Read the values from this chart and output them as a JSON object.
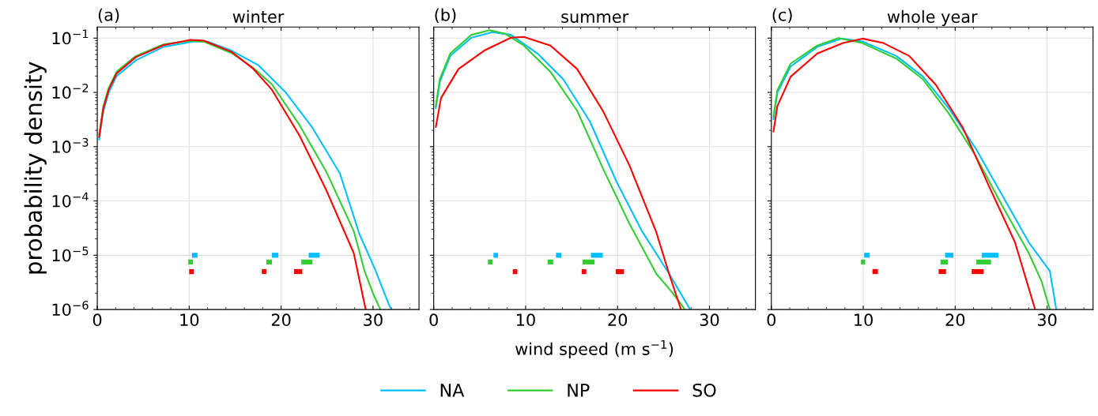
{
  "chart_data": [
    {
      "type": "line",
      "title": "winter",
      "annotations": [
        "(a)"
      ],
      "ylabel": "probability density",
      "log": "y",
      "grid": true,
      "legend": "bottom",
      "xlim": [
        0,
        35
      ],
      "xticks": [
        0,
        10,
        20,
        30
      ],
      "ylim": [
        1e-06,
        0.16
      ],
      "yticks": [
        {
          "value": 1e-06,
          "label": "10$^{−6}$"
        },
        {
          "value": 1e-05,
          "label": "10$^{−5}$"
        },
        {
          "value": 0.0001,
          "label": "10$^{−4}$"
        },
        {
          "value": 0.001,
          "label": "10$^{−3}$"
        },
        {
          "value": 0.01,
          "label": "10$^{−2}$"
        },
        {
          "value": 0.1,
          "label": "10$^{−1}$"
        }
      ],
      "series": [
        {
          "name": "NA",
          "color": "#00bfff",
          "x": [
            0.2,
            0.65,
            1.25,
            2.1,
            4.2,
            7.2,
            10.5,
            12.0,
            14.6,
            17.5,
            20.5,
            23.4,
            26.4,
            28.5,
            30.2,
            31.7,
            32.0
          ],
          "values": [
            0.00135,
            0.0045,
            0.01,
            0.02,
            0.039,
            0.069,
            0.087,
            0.086,
            0.059,
            0.032,
            0.01,
            0.00224,
            0.00032,
            2.5e-05,
            5.6e-06,
            1.26e-06,
            1e-06
          ]
        },
        {
          "name": "NP",
          "color": "#33cc33",
          "x": [
            0.2,
            0.65,
            1.25,
            2.1,
            4.2,
            7.2,
            10.1,
            11.6,
            14.6,
            16.9,
            19.0,
            22.0,
            24.9,
            27.9,
            29.1,
            30.1,
            30.8
          ],
          "values": [
            0.00165,
            0.0055,
            0.0122,
            0.024,
            0.047,
            0.077,
            0.089,
            0.086,
            0.053,
            0.029,
            0.0141,
            0.0025,
            0.00035,
            2.8e-05,
            5e-06,
            1.8e-06,
            1e-06
          ]
        },
        {
          "name": "SO",
          "color": "#ff0000",
          "x": [
            0.2,
            0.65,
            1.25,
            2.1,
            4.2,
            7.2,
            10.1,
            11.6,
            14.6,
            16.9,
            19.0,
            22.0,
            24.9,
            27.9,
            29.2
          ],
          "values": [
            0.0015,
            0.005,
            0.0112,
            0.0224,
            0.0447,
            0.074,
            0.093,
            0.09,
            0.056,
            0.028,
            0.0112,
            0.0016,
            0.00016,
            1.1e-05,
            1e-06
          ]
        },
        {
          "color": "#00bfff",
          "x": [
            10.3,
            10.9
          ],
          "values": [
            1e-05,
            1e-05
          ]
        },
        {
          "color": "#00bfff",
          "x": [
            19.0,
            19.7
          ],
          "values": [
            1e-05,
            1e-05
          ]
        },
        {
          "color": "#00bfff",
          "x": [
            23.0,
            24.2
          ],
          "values": [
            1e-05,
            1e-05
          ]
        },
        {
          "color": "#33cc33",
          "x": [
            9.9,
            10.4
          ],
          "values": [
            7.5e-06,
            7.5e-06
          ]
        },
        {
          "color": "#33cc33",
          "x": [
            18.4,
            19.0
          ],
          "values": [
            7.5e-06,
            7.5e-06
          ]
        },
        {
          "color": "#33cc33",
          "x": [
            22.2,
            23.4
          ],
          "values": [
            7.5e-06,
            7.5e-06
          ]
        },
        {
          "color": "#ff0000",
          "x": [
            10.0,
            10.5
          ],
          "values": [
            5e-06,
            5e-06
          ]
        },
        {
          "color": "#ff0000",
          "x": [
            17.9,
            18.4
          ],
          "values": [
            5e-06,
            5e-06
          ]
        },
        {
          "color": "#ff0000",
          "x": [
            21.4,
            22.3
          ],
          "values": [
            5e-06,
            5e-06
          ]
        }
      ]
    },
    {
      "type": "line",
      "title": "summer",
      "annotations": [
        "(b)"
      ],
      "xlabel": "wind speed (m s$^{−1}$)",
      "log": "y",
      "grid": true,
      "tick_labels": "x",
      "xlim": [
        0,
        35
      ],
      "xticks": [
        0,
        10,
        20,
        30
      ],
      "ylim": [
        1e-06,
        0.16
      ],
      "series": [
        {
          "name": "NA",
          "color": "#00bfff",
          "x": [
            0.23,
            0.66,
            1.8,
            4.1,
            6.4,
            8.4,
            11.3,
            14.1,
            17.0,
            19.9,
            22.7,
            25.6,
            27.9
          ],
          "values": [
            0.0051,
            0.0155,
            0.047,
            0.102,
            0.129,
            0.115,
            0.052,
            0.0174,
            0.0029,
            0.000224,
            2.7e-05,
            4.6e-06,
            1e-06
          ]
        },
        {
          "name": "NP",
          "color": "#33cc33",
          "x": [
            0.23,
            0.66,
            1.8,
            4.1,
            6.1,
            7.8,
            9.8,
            12.7,
            15.6,
            18.4,
            21.3,
            24.2,
            25.9,
            27.0,
            27.3
          ],
          "values": [
            0.0056,
            0.0174,
            0.052,
            0.115,
            0.14,
            0.12,
            0.073,
            0.024,
            0.0046,
            0.0004,
            3.8e-05,
            4.6e-06,
            2.1e-06,
            1.2e-06,
            1e-06
          ]
        },
        {
          "name": "SO",
          "color": "#ff0000",
          "x": [
            0.23,
            0.8,
            2.7,
            5.5,
            8.4,
            9.8,
            12.7,
            15.6,
            18.4,
            21.3,
            24.2,
            25.6,
            26.9
          ],
          "values": [
            0.0023,
            0.0079,
            0.027,
            0.059,
            0.102,
            0.105,
            0.073,
            0.027,
            0.0046,
            0.00045,
            2.7e-05,
            4.6e-06,
            1e-06
          ]
        },
        {
          "color": "#00bfff",
          "x": [
            6.5,
            7.0
          ],
          "values": [
            1e-05,
            1e-05
          ]
        },
        {
          "color": "#00bfff",
          "x": [
            13.3,
            13.9
          ],
          "values": [
            1e-05,
            1e-05
          ]
        },
        {
          "color": "#00bfff",
          "x": [
            17.1,
            18.4
          ],
          "values": [
            1e-05,
            1e-05
          ]
        },
        {
          "color": "#33cc33",
          "x": [
            5.9,
            6.4
          ],
          "values": [
            7.5e-06,
            7.5e-06
          ]
        },
        {
          "color": "#33cc33",
          "x": [
            12.4,
            13.0
          ],
          "values": [
            7.5e-06,
            7.5e-06
          ]
        },
        {
          "color": "#33cc33",
          "x": [
            16.2,
            17.5
          ],
          "values": [
            7.5e-06,
            7.5e-06
          ]
        },
        {
          "color": "#ff0000",
          "x": [
            8.6,
            9.1
          ],
          "values": [
            5e-06,
            5e-06
          ]
        },
        {
          "color": "#ff0000",
          "x": [
            16.1,
            16.6
          ],
          "values": [
            5e-06,
            5e-06
          ]
        },
        {
          "color": "#ff0000",
          "x": [
            19.8,
            20.7
          ],
          "values": [
            5e-06,
            5e-06
          ]
        }
      ]
    },
    {
      "type": "line",
      "title": "whole year",
      "annotations": [
        "(c)"
      ],
      "log": "y",
      "grid": true,
      "tick_labels": "x",
      "xlim": [
        0,
        35
      ],
      "xticks": [
        0,
        10,
        20,
        30
      ],
      "ylim": [
        1e-06,
        0.16
      ],
      "series": [
        {
          "name": "NA",
          "color": "#00bfff",
          "x": [
            0.23,
            0.66,
            2.1,
            5.0,
            7.6,
            9.9,
            13.6,
            16.5,
            19.3,
            22.2,
            25.1,
            28.0,
            30.3,
            31.0
          ],
          "values": [
            0.0032,
            0.01,
            0.03,
            0.069,
            0.098,
            0.087,
            0.047,
            0.0195,
            0.0051,
            0.00095,
            0.000129,
            1.74e-05,
            5.1e-06,
            1e-06
          ]
        },
        {
          "name": "NP",
          "color": "#33cc33",
          "x": [
            0.23,
            0.66,
            2.1,
            5.0,
            7.3,
            9.9,
            13.6,
            16.5,
            19.3,
            22.2,
            25.1,
            28.0,
            29.4,
            30.3
          ],
          "values": [
            0.0036,
            0.011,
            0.034,
            0.073,
            0.1,
            0.081,
            0.042,
            0.0174,
            0.0041,
            0.00069,
            8.3e-05,
            1.1e-05,
            3.3e-06,
            1e-06
          ]
        },
        {
          "name": "SO",
          "color": "#ff0000",
          "x": [
            0.23,
            0.66,
            2.1,
            5.0,
            7.8,
            9.9,
            12.2,
            15.0,
            17.9,
            20.8,
            23.6,
            26.5,
            28.7
          ],
          "values": [
            0.0019,
            0.0056,
            0.0195,
            0.052,
            0.081,
            0.098,
            0.081,
            0.047,
            0.0138,
            0.0023,
            0.0002,
            1.74e-05,
            1e-06
          ]
        },
        {
          "color": "#00bfff",
          "x": [
            10.1,
            10.7
          ],
          "values": [
            1e-05,
            1e-05
          ]
        },
        {
          "color": "#00bfff",
          "x": [
            18.9,
            19.8
          ],
          "values": [
            1e-05,
            1e-05
          ]
        },
        {
          "color": "#00bfff",
          "x": [
            22.9,
            24.7
          ],
          "values": [
            1e-05,
            1e-05
          ]
        },
        {
          "color": "#33cc33",
          "x": [
            9.75,
            10.2
          ],
          "values": [
            7.5e-06,
            7.5e-06
          ]
        },
        {
          "color": "#33cc33",
          "x": [
            18.4,
            19.2
          ],
          "values": [
            7.5e-06,
            7.5e-06
          ]
        },
        {
          "color": "#33cc33",
          "x": [
            22.3,
            23.9
          ],
          "values": [
            7.5e-06,
            7.5e-06
          ]
        },
        {
          "color": "#ff0000",
          "x": [
            11.0,
            11.6
          ],
          "values": [
            5e-06,
            5e-06
          ]
        },
        {
          "color": "#ff0000",
          "x": [
            18.2,
            19.0
          ],
          "values": [
            5e-06,
            5e-06
          ]
        },
        {
          "color": "#ff0000",
          "x": [
            21.8,
            23.1
          ],
          "values": [
            5e-06,
            5e-06
          ]
        }
      ]
    }
  ]
}
